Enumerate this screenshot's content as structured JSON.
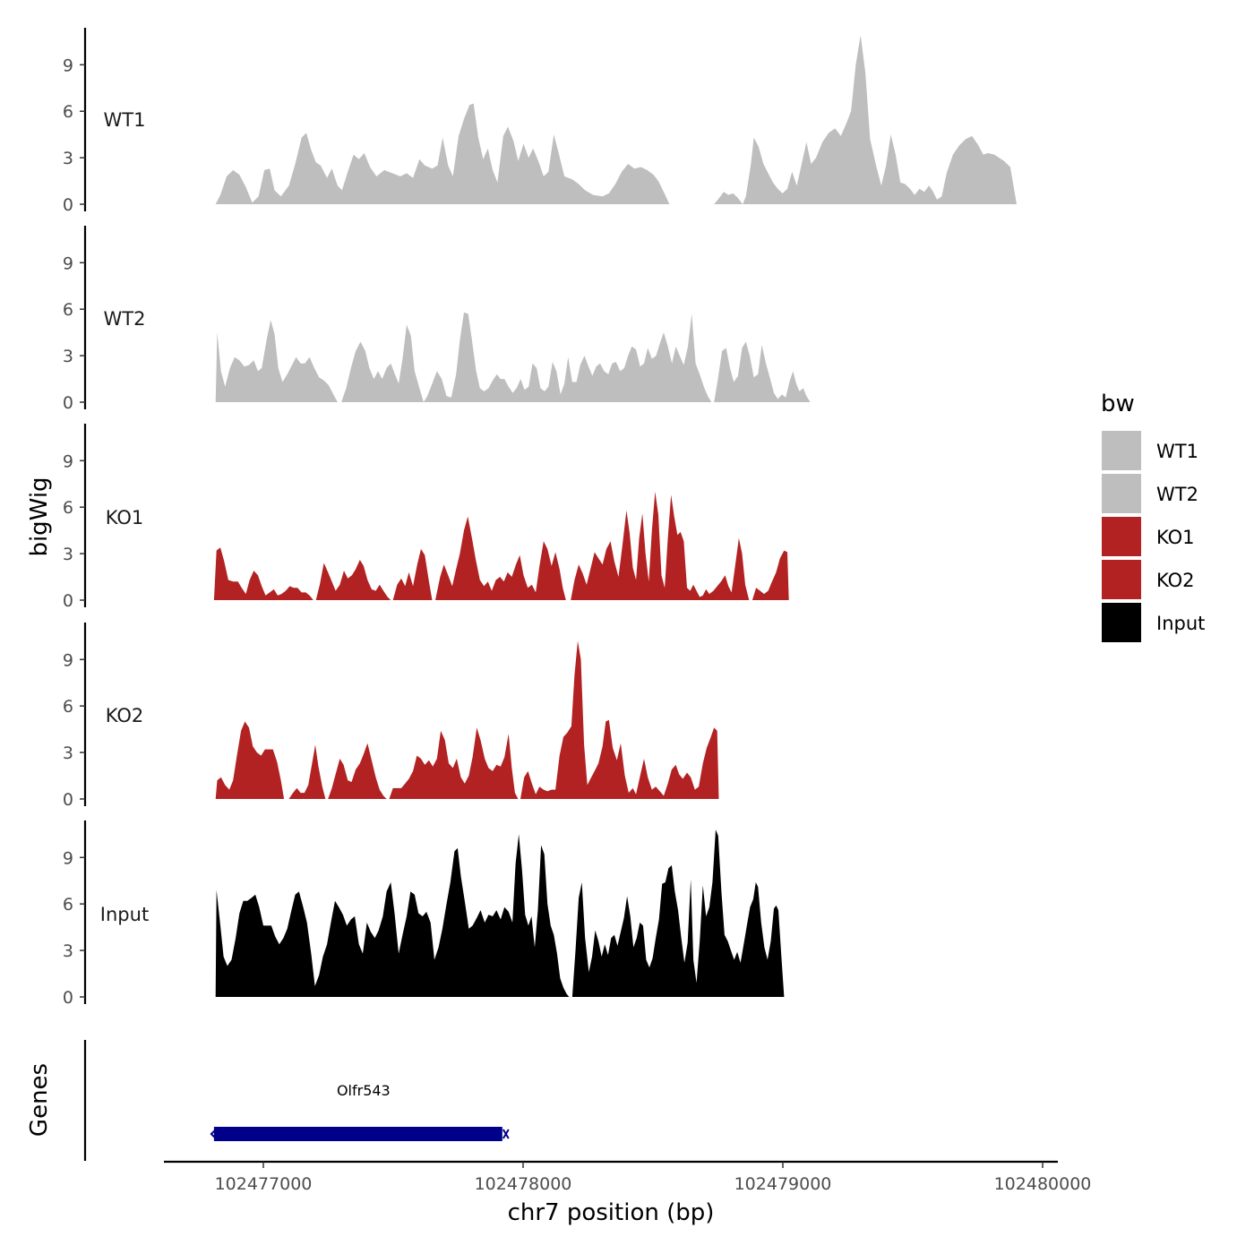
{
  "chart_data": {
    "type": "area",
    "title": "",
    "ylabel": "bigWig",
    "xlabel": "chr7 position (bp)",
    "gene_panel_label": "Genes",
    "legend_title": "bw",
    "ylim": [
      0,
      11.5
    ],
    "y_ticks": [
      "0",
      "3",
      "6",
      "9"
    ],
    "y_tick_values": [
      0,
      3,
      6,
      9
    ],
    "xlim": [
      102476630,
      102480060
    ],
    "x_ticks": [
      "102477000",
      "102478000",
      "102479000",
      "102480000"
    ],
    "x_tick_values": [
      102477000,
      102478000,
      102479000,
      102480000
    ],
    "series": [
      {
        "name": "WT1",
        "color": "#bebebe",
        "points": [
          [
            102476810,
            0
          ],
          [
            102476830,
            0.5
          ],
          [
            102476850,
            1.5
          ],
          [
            102476875,
            2.2
          ],
          [
            102476900,
            1.9
          ],
          [
            102476925,
            1.0
          ],
          [
            102476940,
            0
          ],
          [
            102476960,
            0.6
          ],
          [
            102476975,
            2.2
          ],
          [
            102476990,
            2.3
          ],
          [
            102477005,
            0.8
          ],
          [
            102477020,
            0.6
          ],
          [
            102477040,
            1.2
          ],
          [
            102477060,
            2.5
          ],
          [
            102477080,
            4.2
          ],
          [
            102477095,
            4.6
          ],
          [
            102477110,
            3.8
          ],
          [
            102477125,
            2.7
          ],
          [
            102477140,
            2.5
          ],
          [
            102477160,
            1.7
          ],
          [
            102477175,
            2.2
          ],
          [
            102477195,
            1.6
          ],
          [
            102477205,
            0.9
          ],
          [
            102477220,
            1.7
          ],
          [
            102477240,
            3.1
          ],
          [
            102477260,
            3.0
          ],
          [
            102477280,
            3.3
          ],
          [
            102477300,
            2.6
          ],
          [
            102477320,
            1.8
          ],
          [
            102477340,
            2.2
          ],
          [
            102477360,
            2.2
          ],
          [
            102477380,
            2.0
          ],
          [
            102477400,
            1.8
          ],
          [
            102477420,
            1.9
          ],
          [
            102477440,
            1.6
          ],
          [
            102477460,
            3.0
          ],
          [
            102477480,
            2.6
          ],
          [
            102477500,
            2.3
          ],
          [
            102477520,
            2.5
          ],
          [
            102477535,
            4.3
          ],
          [
            102477550,
            2.7
          ],
          [
            102477565,
            1.7
          ],
          [
            102477580,
            4.3
          ],
          [
            102477600,
            5.4
          ],
          [
            102477615,
            6.4
          ],
          [
            102477625,
            6.5
          ],
          [
            102477640,
            4.4
          ],
          [
            102477655,
            2.9
          ],
          [
            102477670,
            3.7
          ],
          [
            102477685,
            2.2
          ],
          [
            102477700,
            1.4
          ],
          [
            102477720,
            4.6
          ],
          [
            102477735,
            5.1
          ],
          [
            102477750,
            4.0
          ],
          [
            102477765,
            2.7
          ],
          [
            102477780,
            3.9
          ],
          [
            102477795,
            3.0
          ],
          [
            102477810,
            3.5
          ],
          [
            102477825,
            2.7
          ],
          [
            102477840,
            1.7
          ],
          [
            102477860,
            2.1
          ],
          [
            102477880,
            4.3
          ],
          [
            102477895,
            3.3
          ],
          [
            102477910,
            1.8
          ],
          [
            102477930,
            1.6
          ],
          [
            102477950,
            1.2
          ],
          [
            102477965,
            0.9
          ],
          [
            102477985,
            0.6
          ],
          [
            102478000,
            0.5
          ],
          [
            102478020,
            0.5
          ],
          [
            102478040,
            0.6
          ],
          [
            102478060,
            0.8
          ],
          [
            102478080,
            1.2
          ],
          [
            102478090,
            2.0
          ],
          [
            102478110,
            2.6
          ],
          [
            102478130,
            2.2
          ],
          [
            102478145,
            2.6
          ],
          [
            102478160,
            3.1
          ],
          [
            102478180,
            2.8
          ],
          [
            102478200,
            2.6
          ],
          [
            102478215,
            1.7
          ],
          [
            102478230,
            1.4
          ],
          [
            102478250,
            1.6
          ],
          [
            102478270,
            1.9
          ],
          [
            102478290,
            2.4
          ],
          [
            102478310,
            2.1
          ],
          [
            102478330,
            2.0
          ],
          [
            102478345,
            1.6
          ],
          [
            102478360,
            1.0
          ],
          [
            102478370,
            0
          ],
          [
            102478400,
            1.1
          ],
          [
            102478410,
            0
          ],
          [
            102478415,
            0
          ],
          [
            102478418,
            0
          ],
          [
            102478420,
            0
          ],
          [
            102478425,
            0.0
          ],
          [
            102478440,
            0.6
          ],
          [
            102478460,
            0.9
          ],
          [
            102478480,
            1.0
          ],
          [
            102478490,
            1.2
          ],
          [
            102478500,
            1.3
          ],
          [
            102478520,
            1.0
          ],
          [
            102478540,
            0.8
          ],
          [
            102478560,
            1.0
          ],
          [
            102478580,
            0.5
          ],
          [
            102478600,
            0
          ]
        ]
      }
    ]
  }
}
